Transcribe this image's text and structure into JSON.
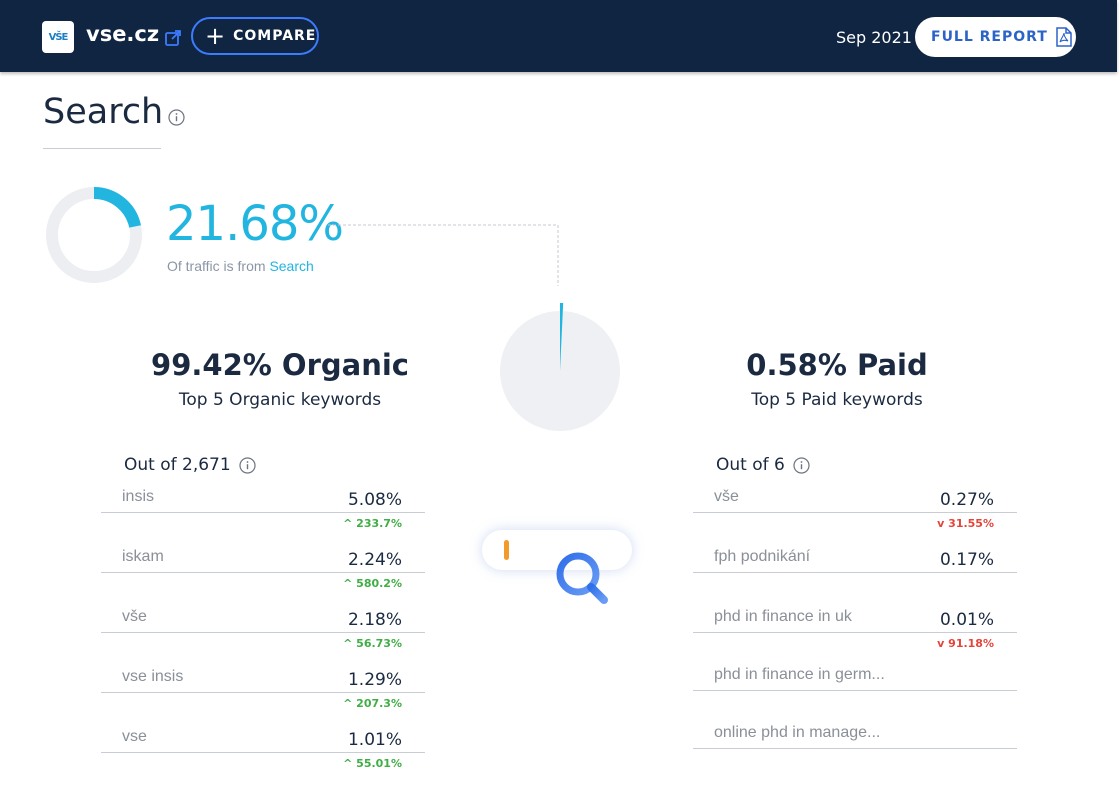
{
  "header": {
    "logo_text": "VŠE",
    "domain": "vse.cz",
    "compare_label": "COMPARE",
    "period": "Sep 2021",
    "full_report_label": "FULL REPORT"
  },
  "section": {
    "title": "Search"
  },
  "traffic": {
    "share": "21.68%",
    "share_fraction": 0.2168,
    "caption_prefix": "Of traffic is from",
    "caption_source": "Search"
  },
  "split": {
    "organic_fraction": 0.9942,
    "paid_fraction": 0.0058
  },
  "organic": {
    "percent": "99.42%",
    "label": "Organic",
    "subtitle": "Top 5 Organic keywords",
    "out_of": "Out of 2,671",
    "keywords": [
      {
        "name": "insis",
        "share": "5.08%",
        "change": "233.7%",
        "direction": "up"
      },
      {
        "name": "iskam",
        "share": "2.24%",
        "change": "580.2%",
        "direction": "up"
      },
      {
        "name": "vše",
        "share": "2.18%",
        "change": "56.73%",
        "direction": "up"
      },
      {
        "name": "vse insis",
        "share": "1.29%",
        "change": "207.3%",
        "direction": "up"
      },
      {
        "name": "vse",
        "share": "1.01%",
        "change": "55.01%",
        "direction": "up"
      }
    ]
  },
  "paid": {
    "percent": "0.58%",
    "label": "Paid",
    "subtitle": "Top 5 Paid keywords",
    "out_of": "Out of 6",
    "keywords": [
      {
        "name": "vše",
        "share": "0.27%",
        "change": "31.55%",
        "direction": "down"
      },
      {
        "name": "fph podnikání",
        "share": "0.17%",
        "change": "",
        "direction": ""
      },
      {
        "name": "phd in finance in uk",
        "share": "0.01%",
        "change": "91.18%",
        "direction": "down"
      },
      {
        "name": "phd in finance in germ...",
        "share": "",
        "change": "",
        "direction": ""
      },
      {
        "name": "online phd in manage...",
        "share": "",
        "change": "",
        "direction": ""
      }
    ]
  },
  "colors": {
    "header_bg": "#0f2542",
    "accent": "#22b5e0",
    "button_blue": "#2c63c9",
    "positive": "#3fae45",
    "negative": "#e5443a",
    "ring_track": "#eceef2"
  },
  "icons": {
    "external_link": "external-link-icon",
    "info": "info-icon",
    "pdf": "pdf-icon",
    "search": "search-icon",
    "arrow_up": "chevron-up-icon",
    "arrow_down": "chevron-down-icon"
  }
}
